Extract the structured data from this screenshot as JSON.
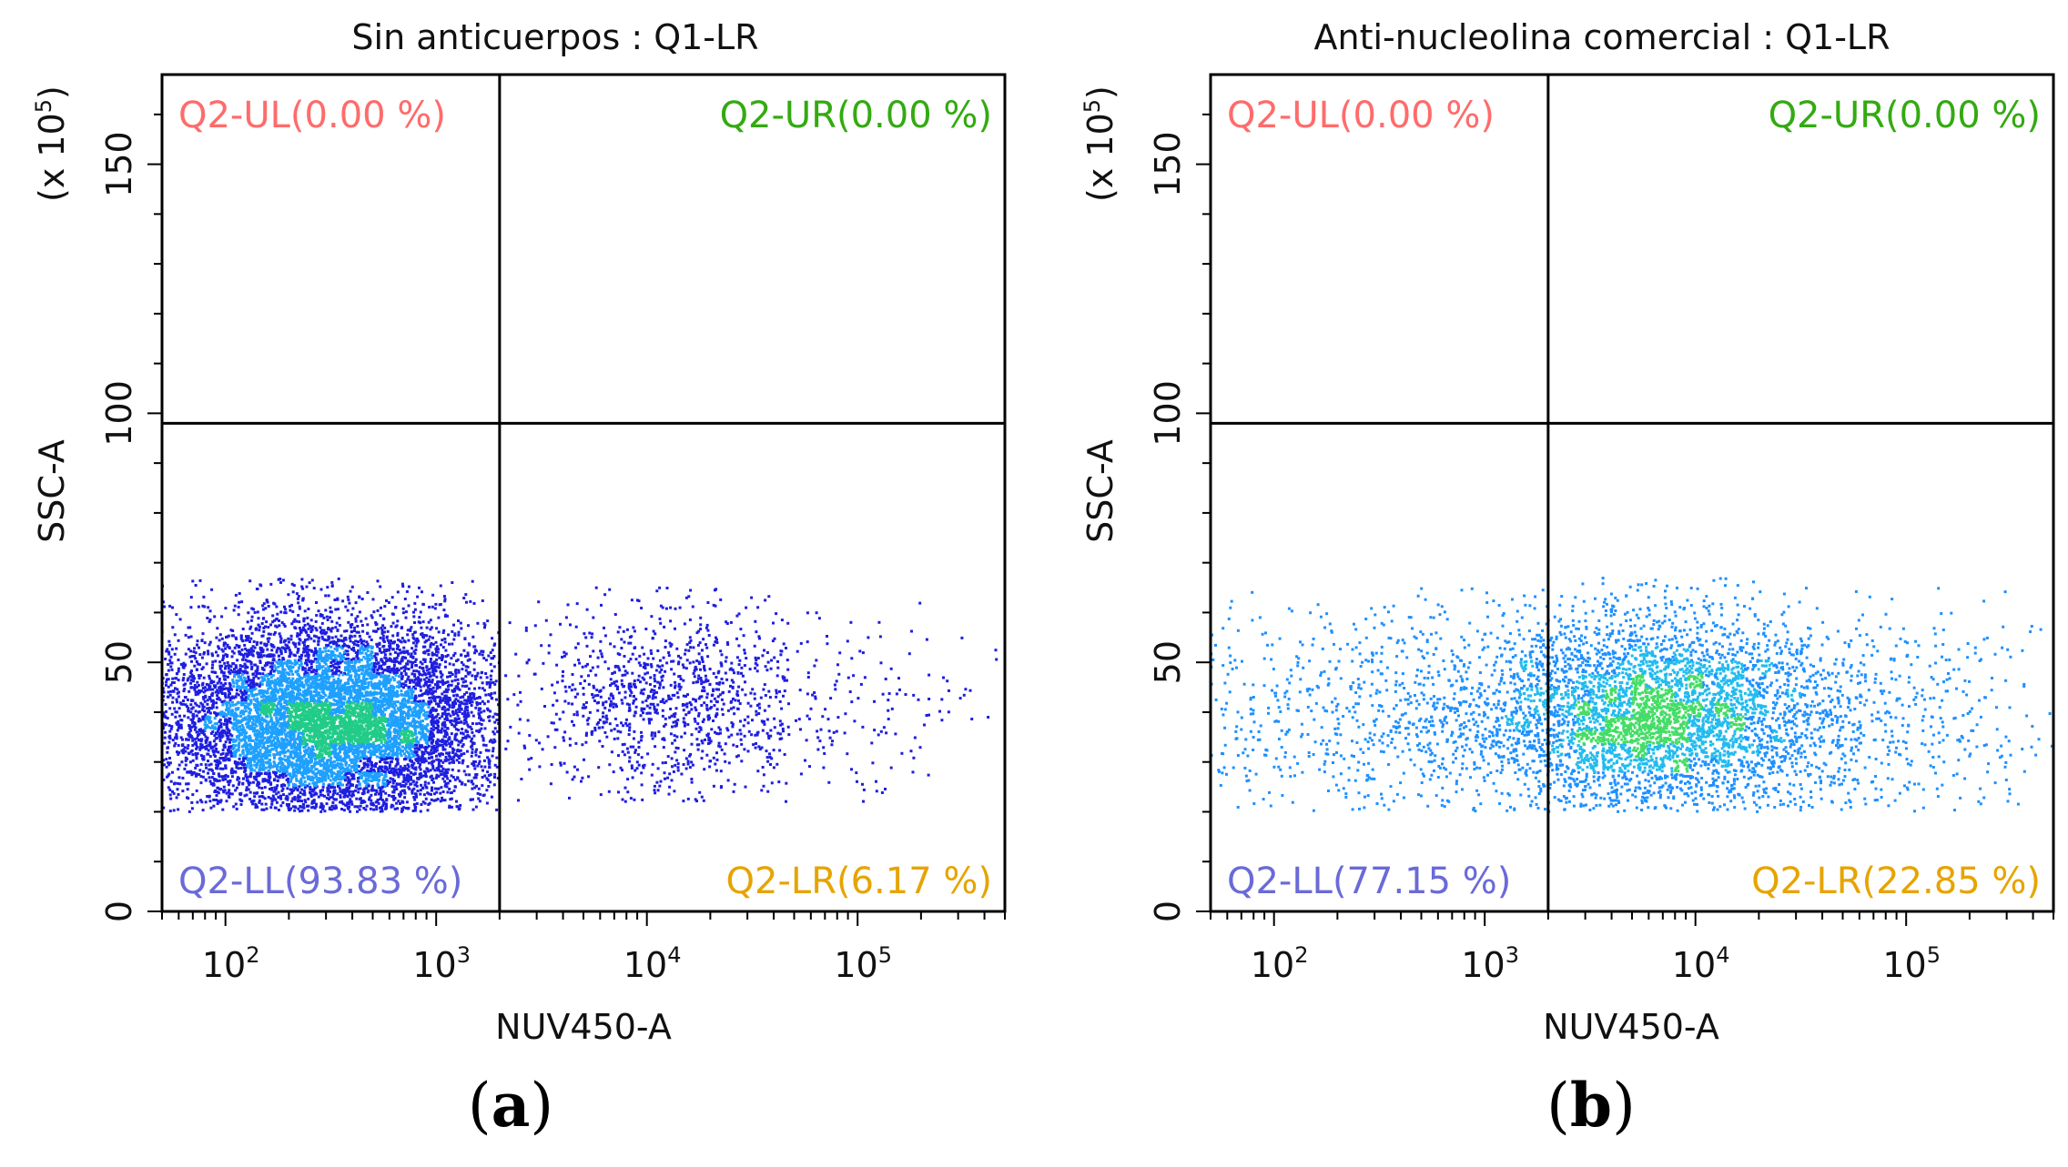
{
  "colors": {
    "ul": "#ff6b6b",
    "ur": "#33aa11",
    "ll": "#6a6ad8",
    "lr": "#e6a400",
    "density_low": "#1e1ee0",
    "density_mid": "#1ea0ff",
    "density_high": "#33dd55"
  },
  "chart_data": [
    {
      "type": "scatter",
      "title": "Sin anticuerpos : Q1-LR",
      "panel_letter": "a",
      "xlabel": "NUV450-A",
      "ylabel": "SSC-A",
      "y_multiplier": "(x 10",
      "y_multiplier_exp": "5",
      "y_multiplier_close": ")",
      "x_scale": "log",
      "xlim": [
        50,
        500000
      ],
      "ylim": [
        0,
        168
      ],
      "x_ticks": [
        {
          "value": 100,
          "base": "10",
          "exp": "2"
        },
        {
          "value": 1000,
          "base": "10",
          "exp": "3"
        },
        {
          "value": 10000,
          "base": "10",
          "exp": "4"
        },
        {
          "value": 100000,
          "base": "10",
          "exp": "5"
        }
      ],
      "y_ticks": [
        {
          "value": 0,
          "label": "0"
        },
        {
          "value": 50,
          "label": "50"
        },
        {
          "value": 100,
          "label": "100"
        },
        {
          "value": 150,
          "label": "150"
        }
      ],
      "gate": {
        "x": 2000,
        "y": 98
      },
      "quadrants": {
        "ul": "Q2-UL(0.00 %)",
        "ur": "Q2-UR(0.00 %)",
        "ll": "Q2-LL(93.83 %)",
        "lr": "Q2-LR(6.17 %)"
      },
      "populations": [
        {
          "center_log10": 2.5,
          "spread_log10": 0.42,
          "y_center": 38,
          "y_spread": 10,
          "y_min": 20,
          "y_max": 67,
          "count": 9000,
          "x_max_log10": 3.3
        },
        {
          "center_log10": 4.05,
          "spread_log10": 0.32,
          "y_center": 42,
          "y_spread": 10,
          "y_min": 22,
          "y_max": 65,
          "count": 1000
        },
        {
          "center_log10": 4.7,
          "spread_log10": 0.5,
          "y_center": 40,
          "y_spread": 11,
          "y_min": 22,
          "y_max": 64,
          "count": 230
        }
      ],
      "point_color": "#1e1ee0",
      "hot_color": "#1ea0ff",
      "hot_core_color": "#22cc88"
    },
    {
      "type": "scatter",
      "title": "Anti-nucleolina comercial : Q1-LR",
      "panel_letter": "b",
      "xlabel": "NUV450-A",
      "ylabel": "SSC-A",
      "y_multiplier": "(x 10",
      "y_multiplier_exp": "5",
      "y_multiplier_close": ")",
      "x_scale": "log",
      "xlim": [
        50,
        500000
      ],
      "ylim": [
        0,
        168
      ],
      "x_ticks": [
        {
          "value": 100,
          "base": "10",
          "exp": "2"
        },
        {
          "value": 1000,
          "base": "10",
          "exp": "3"
        },
        {
          "value": 10000,
          "base": "10",
          "exp": "4"
        },
        {
          "value": 100000,
          "base": "10",
          "exp": "5"
        }
      ],
      "y_ticks": [
        {
          "value": 0,
          "label": "0"
        },
        {
          "value": 50,
          "label": "50"
        },
        {
          "value": 100,
          "label": "100"
        },
        {
          "value": 150,
          "label": "150"
        }
      ],
      "gate": {
        "x": 2000,
        "y": 98
      },
      "quadrants": {
        "ul": "Q2-UL(0.00 %)",
        "ur": "Q2-UR(0.00 %)",
        "ll": "Q2-LL(77.15 %)",
        "lr": "Q2-LR(22.85 %)"
      },
      "populations": [
        {
          "center_log10": 3.85,
          "spread_log10": 0.42,
          "y_center": 39,
          "y_spread": 10,
          "y_min": 20,
          "y_max": 67,
          "count": 3600
        },
        {
          "center_log10": 2.9,
          "spread_log10": 0.8,
          "y_center": 39,
          "y_spread": 11,
          "y_min": 20,
          "y_max": 66,
          "count": 1400
        },
        {
          "center_log10": 4.9,
          "spread_log10": 0.55,
          "y_center": 40,
          "y_spread": 11,
          "y_min": 20,
          "y_max": 65,
          "count": 450
        }
      ],
      "point_color": "#1e90ff",
      "hot_color": "#22bbee",
      "hot_core_color": "#44dd66"
    }
  ]
}
